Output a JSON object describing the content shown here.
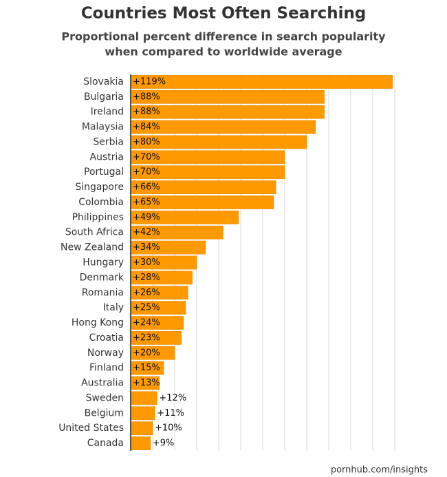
{
  "chart_data": {
    "type": "bar",
    "orientation": "horizontal",
    "title": "Countries Most Often Searching",
    "subtitle": [
      "Proportional percent difference in search popularity",
      "when compared to worldwide average"
    ],
    "source": "pornhub.com/insights",
    "categories": [
      "Slovakia",
      "Bulgaria",
      "Ireland",
      "Malaysia",
      "Serbia",
      "Austria",
      "Portugal",
      "Singapore",
      "Colombia",
      "Philippines",
      "South Africa",
      "New Zealand",
      "Hungary",
      "Denmark",
      "Romania",
      "Italy",
      "Hong Kong",
      "Croatia",
      "Norway",
      "Finland",
      "Australia",
      "Sweden",
      "Belgium",
      "United States",
      "Canada"
    ],
    "values": [
      119,
      88,
      88,
      84,
      80,
      70,
      70,
      66,
      65,
      49,
      42,
      34,
      30,
      28,
      26,
      25,
      24,
      23,
      20,
      15,
      13,
      12,
      11,
      10,
      9
    ],
    "value_labels": [
      "+119%",
      "+88%",
      "+88%",
      "+84%",
      "+80%",
      "+70%",
      "+70%",
      "+66%",
      "+65%",
      "+49%",
      "+42%",
      "+34%",
      "+30%",
      "+28%",
      "+26%",
      "+25%",
      "+24%",
      "+23%",
      "+20%",
      "+15%",
      "+13%",
      "+12%",
      "+11%",
      "+10%",
      "+9%"
    ],
    "color": "#ff9900",
    "xlim": [
      0,
      120
    ],
    "xticks": [
      0,
      10,
      20,
      30,
      40,
      50,
      60,
      70,
      80,
      90,
      100,
      110,
      120
    ],
    "grid": true
  }
}
